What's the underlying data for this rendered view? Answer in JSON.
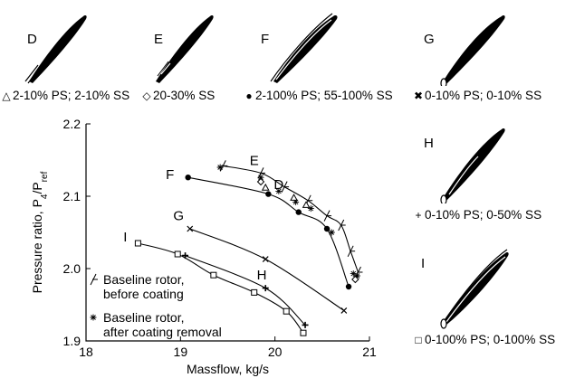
{
  "blades": [
    {
      "id": "D",
      "caption": "2-10% PS; 2-10% SS",
      "marker": "triangle-open",
      "marker_glyph": "△"
    },
    {
      "id": "E",
      "caption": "20-30% SS",
      "marker": "diamond-open",
      "marker_glyph": "◇"
    },
    {
      "id": "F",
      "caption": "2-100% PS; 55-100% SS",
      "marker": "circle-filled",
      "marker_glyph": "●"
    },
    {
      "id": "G",
      "caption": "0-10% PS; 0-10% SS",
      "marker": "x-cross",
      "marker_glyph": "✖"
    },
    {
      "id": "H",
      "caption": "0-10% PS; 0-50% SS",
      "marker": "plus",
      "marker_glyph": "+"
    },
    {
      "id": "I",
      "caption": "0-100% PS; 0-100% SS",
      "marker": "square-open",
      "marker_glyph": "□"
    }
  ],
  "chart_data": {
    "type": "line",
    "xlabel": "Massflow, kg/s",
    "ylabel_main": "Pressure ratio, P",
    "ylabel_sub": "4",
    "ylabel_mid": "/P",
    "ylabel_sub2": "ref",
    "xlim": [
      18,
      21
    ],
    "ylim": [
      1.9,
      2.2
    ],
    "xticks": [
      18,
      19,
      20,
      21
    ],
    "yticks": [
      1.9,
      2.0,
      2.1,
      2.2
    ],
    "xtick_labels": [
      "18",
      "19",
      "20",
      "21"
    ],
    "ytick_labels": [
      "1.9",
      "2.0",
      "2.1",
      "2.2"
    ],
    "grid": false,
    "legend": [
      {
        "marker": "slash-tick",
        "lines": [
          "Baseline rotor,",
          "before coating"
        ]
      },
      {
        "marker": "asterisk",
        "lines": [
          "Baseline rotor,",
          "after coating removal"
        ]
      }
    ],
    "series": [
      {
        "name": "Baseline rotor, before coating",
        "marker": "slash-tick",
        "x": [
          19.45,
          19.85,
          20.1,
          20.35,
          20.55,
          20.7,
          20.8,
          20.88
        ],
        "y": [
          2.142,
          2.132,
          2.113,
          2.094,
          2.073,
          2.06,
          2.024,
          1.995
        ]
      },
      {
        "name": "Baseline rotor, after coating removal",
        "marker": "asterisk",
        "x": [
          19.42,
          19.85,
          20.04,
          20.22,
          20.38,
          20.6,
          20.83,
          20.87
        ],
        "y": [
          2.14,
          2.126,
          2.107,
          2.092,
          2.083,
          2.05,
          1.993,
          1.99
        ]
      },
      {
        "name": "D",
        "label": "D",
        "marker": "triangle-open",
        "x": [
          19.9,
          20.2,
          20.33
        ],
        "y": [
          2.112,
          2.098,
          2.088
        ]
      },
      {
        "name": "E",
        "label": "E",
        "marker": "diamond-open",
        "x": [
          19.85,
          20.85
        ],
        "y": [
          2.12,
          1.985
        ]
      },
      {
        "name": "F",
        "label": "F",
        "marker": "circle-filled",
        "x": [
          19.08,
          19.93,
          20.25,
          20.55,
          20.78
        ],
        "y": [
          2.126,
          2.103,
          2.078,
          2.055,
          1.975
        ]
      },
      {
        "name": "G",
        "label": "G",
        "marker": "x-cross",
        "x": [
          19.1,
          19.9,
          20.73
        ],
        "y": [
          2.055,
          2.013,
          1.942
        ]
      },
      {
        "name": "H",
        "label": "H",
        "marker": "plus",
        "x": [
          19.05,
          19.9,
          20.32
        ],
        "y": [
          2.018,
          1.973,
          1.922
        ]
      },
      {
        "name": "I",
        "label": "I",
        "marker": "square-open",
        "x": [
          18.55,
          18.97,
          19.35,
          19.78,
          20.12,
          20.3
        ],
        "y": [
          2.035,
          2.02,
          1.991,
          1.967,
          1.941,
          1.911
        ]
      }
    ]
  }
}
